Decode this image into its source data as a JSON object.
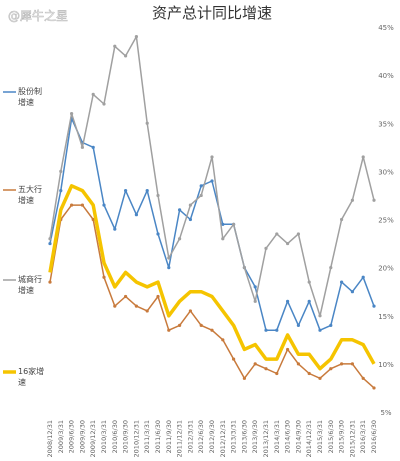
{
  "watermark": "@犀牛之星",
  "chart_data": {
    "type": "line",
    "title": "资产总计同比增速",
    "categories": [
      "2008/12/31",
      "2009/3/31",
      "2009/6/30",
      "2009/9/30",
      "2009/12/31",
      "2010/3/31",
      "2010/6/30",
      "2010/9/30",
      "2010/12/31",
      "2011/3/31",
      "2011/6/30",
      "2011/9/30",
      "2011/12/31",
      "2012/3/31",
      "2012/6/30",
      "2012/9/30",
      "2012/12/31",
      "2013/3/31",
      "2013/6/30",
      "2013/9/30",
      "2013/12/31",
      "2014/3/31",
      "2014/6/30",
      "2014/9/30",
      "2014/12/31",
      "2015/3/31",
      "2015/6/30",
      "2015/9/30",
      "2015/12/31",
      "2016/3/31",
      "2016/6/30"
    ],
    "series": [
      {
        "name": "股份制增速",
        "color": "#4a86c5",
        "width": 1.5,
        "values": [
          22.5,
          28,
          35.5,
          33,
          32.5,
          26.5,
          24,
          28,
          25.5,
          28,
          23.5,
          20,
          26,
          25,
          28.5,
          29,
          24.5,
          24.5,
          20,
          18,
          13.5,
          13.5,
          16.5,
          14,
          16.5,
          13.5,
          14,
          18.5,
          17.5,
          19,
          16
        ]
      },
      {
        "name": "五大行增速",
        "color": "#c87a3c",
        "width": 1.5,
        "values": [
          18.5,
          25,
          26.5,
          26.5,
          25,
          19,
          16,
          17,
          16,
          15.5,
          17,
          13.5,
          14,
          15.5,
          14,
          13.5,
          12.5,
          10.5,
          8.5,
          10,
          9.5,
          9,
          11.5,
          10,
          9,
          8.5,
          9.5,
          10,
          10,
          8.5,
          7.5
        ]
      },
      {
        "name": "城商行增速",
        "color": "#a0a0a0",
        "width": 1.5,
        "values": [
          23,
          30,
          36,
          32.5,
          38,
          37,
          43,
          42,
          44,
          35,
          27.5,
          21,
          23,
          26.5,
          27.5,
          31.5,
          23,
          24.5,
          20,
          16.5,
          22,
          23.5,
          22.5,
          23.5,
          18.5,
          15,
          20,
          25,
          27,
          31.5,
          27
        ]
      },
      {
        "name": "16家增速",
        "color": "#f5c400",
        "width": 3.5,
        "values": [
          19.5,
          26,
          28.5,
          28,
          26.5,
          20.5,
          18,
          19.5,
          18.5,
          18,
          18.5,
          15,
          16.5,
          17.5,
          17.5,
          17,
          15.5,
          14,
          11.5,
          12,
          10.5,
          10.5,
          13,
          11,
          11,
          9.5,
          10.5,
          12.5,
          12.5,
          12,
          10
        ]
      }
    ],
    "ylim": [
      5,
      45
    ],
    "yticks": [
      {
        "value": 5,
        "label": "5%"
      },
      {
        "value": 10,
        "label": "10%"
      },
      {
        "value": 15,
        "label": "15%"
      },
      {
        "value": 20,
        "label": "20%"
      },
      {
        "value": 25,
        "label": "25%"
      },
      {
        "value": 30,
        "label": "30%"
      },
      {
        "value": 35,
        "label": "35%"
      },
      {
        "value": 40,
        "label": "40%"
      },
      {
        "value": 45,
        "label": "45%"
      }
    ],
    "grid": false
  }
}
